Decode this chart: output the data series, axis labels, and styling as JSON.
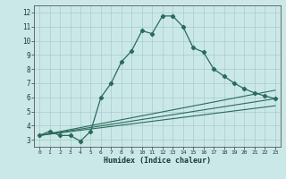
{
  "xlabel": "Humidex (Indice chaleur)",
  "xlim": [
    -0.5,
    23.5
  ],
  "ylim": [
    2.5,
    12.5
  ],
  "bg_color": "#cbe8e8",
  "line_color": "#2a6b5a",
  "grid_color": "#a8cccc",
  "main_line": {
    "x": [
      0,
      1,
      2,
      3,
      4,
      5,
      6,
      7,
      8,
      9,
      10,
      11,
      12,
      13,
      14,
      15,
      16,
      17,
      18,
      19,
      20,
      21,
      22,
      23
    ],
    "y": [
      3.3,
      3.6,
      3.3,
      3.3,
      2.9,
      3.6,
      6.0,
      7.0,
      8.5,
      9.3,
      10.7,
      10.5,
      11.75,
      11.75,
      11.0,
      9.5,
      9.2,
      8.0,
      7.5,
      7.0,
      6.6,
      6.3,
      6.1,
      5.9
    ]
  },
  "flat_lines": [
    {
      "x0": 0,
      "y0": 3.3,
      "x1": 23,
      "y1": 6.5
    },
    {
      "x0": 0,
      "y0": 3.3,
      "x1": 23,
      "y1": 5.9
    },
    {
      "x0": 0,
      "y0": 3.3,
      "x1": 23,
      "y1": 5.4
    }
  ],
  "yticks": [
    3,
    4,
    5,
    6,
    7,
    8,
    9,
    10,
    11,
    12
  ],
  "xticks": [
    0,
    1,
    2,
    3,
    4,
    5,
    6,
    7,
    8,
    9,
    10,
    11,
    12,
    13,
    14,
    15,
    16,
    17,
    18,
    19,
    20,
    21,
    22,
    23
  ]
}
